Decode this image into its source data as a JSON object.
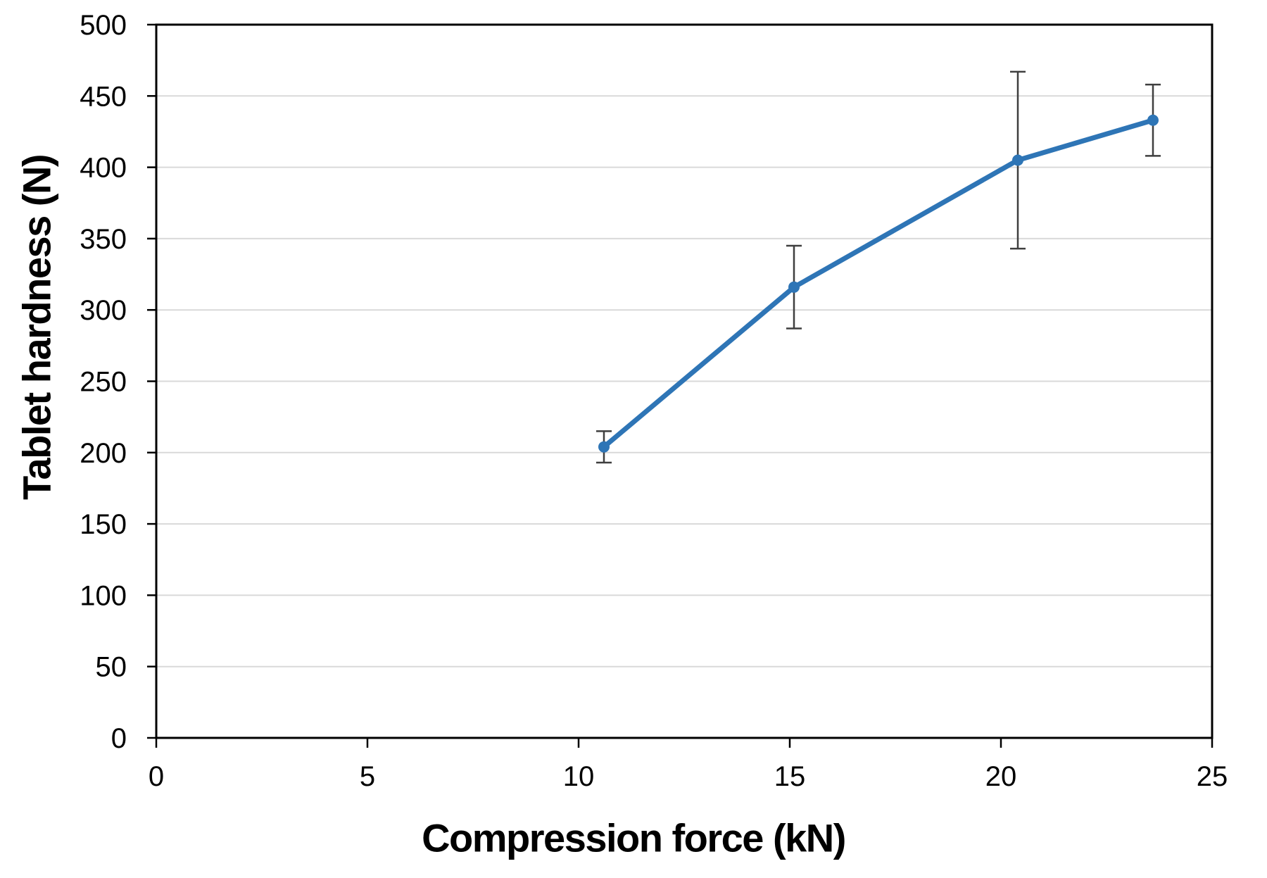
{
  "chart_data": {
    "type": "line",
    "title": "",
    "xlabel": "Compression force (kN)",
    "ylabel": "Tablet hardness (N)",
    "xlim": [
      0,
      25
    ],
    "ylim": [
      0,
      500
    ],
    "x_ticks": [
      "0",
      "5",
      "10",
      "15",
      "20",
      "25"
    ],
    "y_ticks": [
      "0",
      "50",
      "100",
      "150",
      "200",
      "250",
      "300",
      "350",
      "400",
      "450",
      "500"
    ],
    "grid": "horizontal-major",
    "legend_position": "none",
    "series": [
      {
        "marker": "circle",
        "points": [
          {
            "x": 10.6,
            "y": 204,
            "err": 11
          },
          {
            "x": 15.1,
            "y": 316,
            "err": 29
          },
          {
            "x": 20.4,
            "y": 405,
            "err": 62
          },
          {
            "x": 23.6,
            "y": 433,
            "err": 25
          }
        ]
      }
    ],
    "colors": {
      "line": "#2E75B6",
      "marker": "#2E75B6",
      "error_bar": "#3F3F3F",
      "gridline": "#D9D9D9",
      "axis": "#000000",
      "text": "#000000"
    }
  }
}
